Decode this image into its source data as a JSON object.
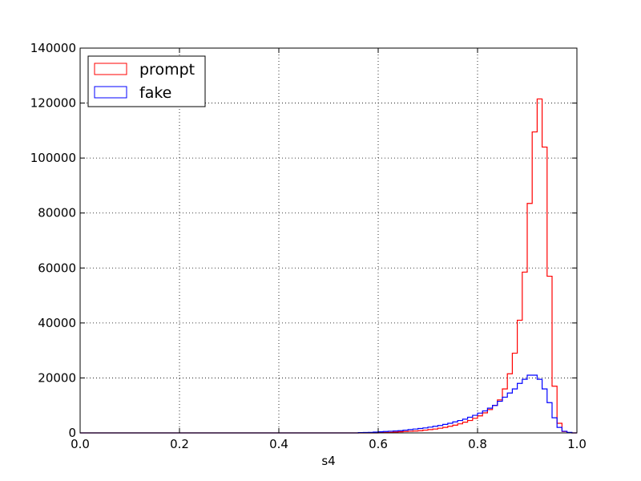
{
  "chart_data": {
    "type": "histogram-step",
    "title": "",
    "xlabel": "s4",
    "ylabel": "",
    "xlim": [
      0.0,
      1.0
    ],
    "ylim": [
      0,
      140000
    ],
    "grid": true,
    "legend_position": "top-left",
    "bins": {
      "start": 0.0,
      "end": 1.0,
      "count": 100
    },
    "xticks": [
      0.0,
      0.2,
      0.4,
      0.6,
      0.8,
      1.0
    ],
    "xtick_labels": [
      "0.0",
      "0.2",
      "0.4",
      "0.6",
      "0.8",
      "1.0"
    ],
    "yticks": [
      0,
      20000,
      40000,
      60000,
      80000,
      100000,
      120000,
      140000
    ],
    "ytick_labels": [
      "0",
      "20000",
      "40000",
      "60000",
      "80000",
      "100000",
      "120000",
      "140000"
    ],
    "series": [
      {
        "name": "prompt",
        "color": "#ff0000",
        "values": [
          0,
          0,
          0,
          0,
          0,
          0,
          0,
          0,
          0,
          0,
          0,
          0,
          0,
          0,
          0,
          0,
          0,
          0,
          0,
          0,
          0,
          0,
          0,
          0,
          0,
          0,
          0,
          0,
          0,
          0,
          0,
          0,
          0,
          0,
          0,
          0,
          0,
          0,
          0,
          0,
          0,
          0,
          0,
          0,
          0,
          0,
          0,
          0,
          0,
          0,
          0,
          0,
          0,
          0,
          0,
          0,
          0,
          0,
          0,
          0,
          100,
          150,
          200,
          300,
          400,
          500,
          600,
          700,
          800,
          1000,
          1200,
          1400,
          1700,
          2000,
          2400,
          2800,
          3300,
          3900,
          4500,
          5300,
          6200,
          7300,
          8500,
          10000,
          12000,
          16000,
          21500,
          29000,
          41000,
          58500,
          83500,
          109500,
          121500,
          104000,
          57000,
          17000,
          3500,
          500,
          100,
          0
        ]
      },
      {
        "name": "fake",
        "color": "#0000ff",
        "values": [
          0,
          0,
          0,
          0,
          0,
          0,
          0,
          0,
          0,
          0,
          0,
          0,
          0,
          0,
          0,
          0,
          0,
          0,
          0,
          0,
          0,
          0,
          0,
          0,
          0,
          0,
          0,
          0,
          0,
          0,
          0,
          0,
          0,
          0,
          0,
          0,
          0,
          0,
          0,
          0,
          0,
          0,
          0,
          0,
          0,
          0,
          0,
          0,
          0,
          0,
          0,
          0,
          0,
          0,
          0,
          0,
          100,
          150,
          200,
          300,
          400,
          500,
          600,
          700,
          800,
          1000,
          1200,
          1400,
          1600,
          1800,
          2100,
          2400,
          2700,
          3100,
          3500,
          4000,
          4500,
          5000,
          5700,
          6400,
          7200,
          8000,
          9000,
          10000,
          11500,
          13000,
          14500,
          16000,
          18000,
          19500,
          21000,
          21000,
          19500,
          16000,
          11000,
          5500,
          2000,
          600,
          200,
          0
        ]
      }
    ]
  }
}
